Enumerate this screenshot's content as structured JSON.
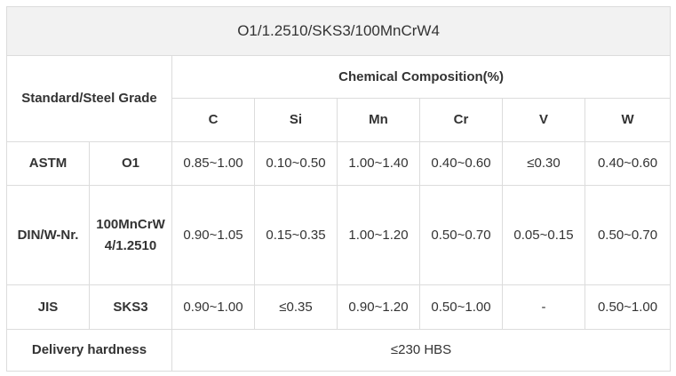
{
  "title": "O1/1.2510/SKS3/100MnCrW4",
  "header": {
    "group_label": "Standard/Steel Grade",
    "composition_label": "Chemical Composition(%)",
    "elements": [
      "C",
      "Si",
      "Mn",
      "Cr",
      "V",
      "W"
    ]
  },
  "rows": [
    {
      "standard": "ASTM",
      "grade": "O1",
      "values": [
        "0.85~1.00",
        "0.10~0.50",
        "1.00~1.40",
        "0.40~0.60",
        "≤0.30",
        "0.40~0.60"
      ]
    },
    {
      "standard": "DIN/W-Nr.",
      "grade": "100MnCrW4/1.2510",
      "values": [
        "0.90~1.05",
        "0.15~0.35",
        "1.00~1.20",
        "0.50~0.70",
        "0.05~0.15",
        "0.50~0.70"
      ]
    },
    {
      "standard": "JIS",
      "grade": "SKS3",
      "values": [
        "0.90~1.00",
        "≤0.35",
        "0.90~1.20",
        "0.50~1.00",
        "-",
        "0.50~1.00"
      ]
    }
  ],
  "footer": {
    "label": "Delivery hardness",
    "value": "≤230 HBS"
  }
}
